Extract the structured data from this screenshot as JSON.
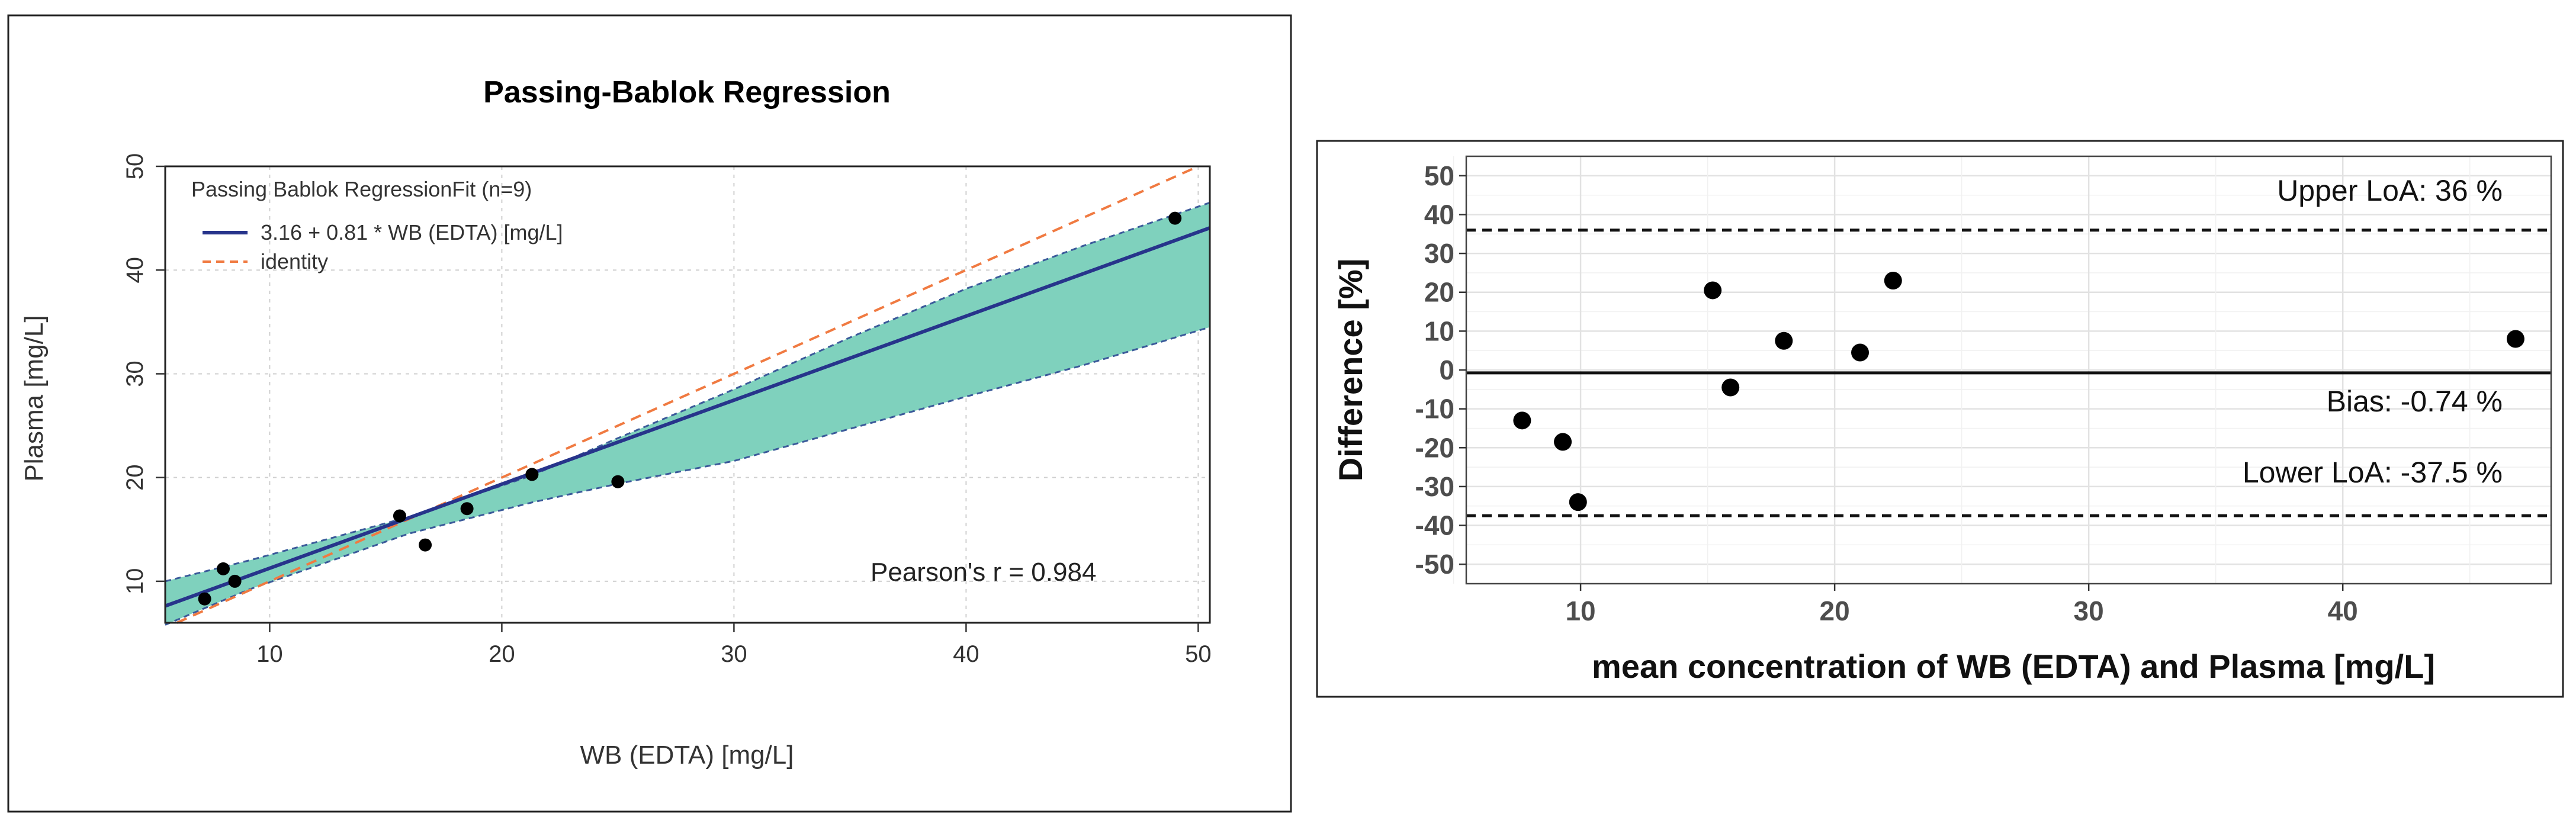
{
  "chart_data": [
    {
      "type": "scatter",
      "title": "Passing-Bablok Regression",
      "xlabel": "WB (EDTA) [mg/L]",
      "ylabel": "Plasma [mg/L]",
      "xlim": [
        5.5,
        50.5
      ],
      "ylim": [
        6,
        50
      ],
      "xticks": [
        "10",
        "20",
        "30",
        "40",
        "50"
      ],
      "yticks": [
        "10",
        "20",
        "30",
        "40",
        "50"
      ],
      "grid": true,
      "legend": {
        "title": "Passing Bablok RegressionFit (n=9)",
        "entries": [
          "3.16 + 0.81 * WB (EDTA) [mg/L]",
          "identity"
        ],
        "position": "top-left"
      },
      "annotation": "Pearson's r = 0.984",
      "fit": {
        "intercept": 3.16,
        "slope": 0.81,
        "color": "#27348b"
      },
      "identity_color": "#f07a41",
      "ci_color": "#7fd1bd",
      "ci_band": {
        "x": [
          5.5,
          9.1,
          16,
          21.3,
          25,
          30,
          35,
          40,
          45,
          50.5
        ],
        "lower": [
          5.8,
          9.2,
          14.6,
          17.6,
          19.4,
          21.6,
          24.7,
          27.8,
          30.8,
          34.5
        ],
        "upper": [
          10.0,
          12.0,
          16.2,
          20.2,
          23.8,
          28.5,
          33.5,
          38.2,
          42.3,
          46.5
        ]
      },
      "points": [
        {
          "x": 7.2,
          "y": 8.3
        },
        {
          "x": 8.0,
          "y": 11.2
        },
        {
          "x": 8.5,
          "y": 10.0
        },
        {
          "x": 15.6,
          "y": 16.3
        },
        {
          "x": 16.7,
          "y": 13.5
        },
        {
          "x": 18.5,
          "y": 17.0
        },
        {
          "x": 21.3,
          "y": 20.3
        },
        {
          "x": 25.0,
          "y": 19.6
        },
        {
          "x": 49.0,
          "y": 45.0
        }
      ]
    },
    {
      "type": "scatter",
      "title": "",
      "xlabel": "mean concentration of WB (EDTA) and Plasma [mg/L]",
      "ylabel": "Difference [%]",
      "xlim": [
        5.5,
        48.2
      ],
      "ylim": [
        -55,
        55
      ],
      "xticks": [
        "10",
        "20",
        "30",
        "40"
      ],
      "yticks": [
        "50",
        "40",
        "30",
        "20",
        "10",
        "0",
        "-10",
        "-20",
        "-30",
        "-40",
        "-50"
      ],
      "grid": true,
      "lines": [
        {
          "name": "Upper LoA",
          "value": 36,
          "label": "Upper LoA:  36 %",
          "style": "dashed"
        },
        {
          "name": "Bias",
          "value": -0.74,
          "label": "Bias:  -0.74 %",
          "style": "solid"
        },
        {
          "name": "Lower LoA",
          "value": -37.5,
          "label": "Lower LoA:  -37.5 %",
          "style": "dashed"
        }
      ],
      "points": [
        {
          "x": 7.7,
          "y": -13
        },
        {
          "x": 9.3,
          "y": -18.5
        },
        {
          "x": 9.9,
          "y": -34
        },
        {
          "x": 15.2,
          "y": 20.5
        },
        {
          "x": 15.9,
          "y": -4.5
        },
        {
          "x": 18.0,
          "y": 7.5
        },
        {
          "x": 21.0,
          "y": 4.5
        },
        {
          "x": 22.3,
          "y": 23
        },
        {
          "x": 46.8,
          "y": 8
        }
      ]
    }
  ]
}
